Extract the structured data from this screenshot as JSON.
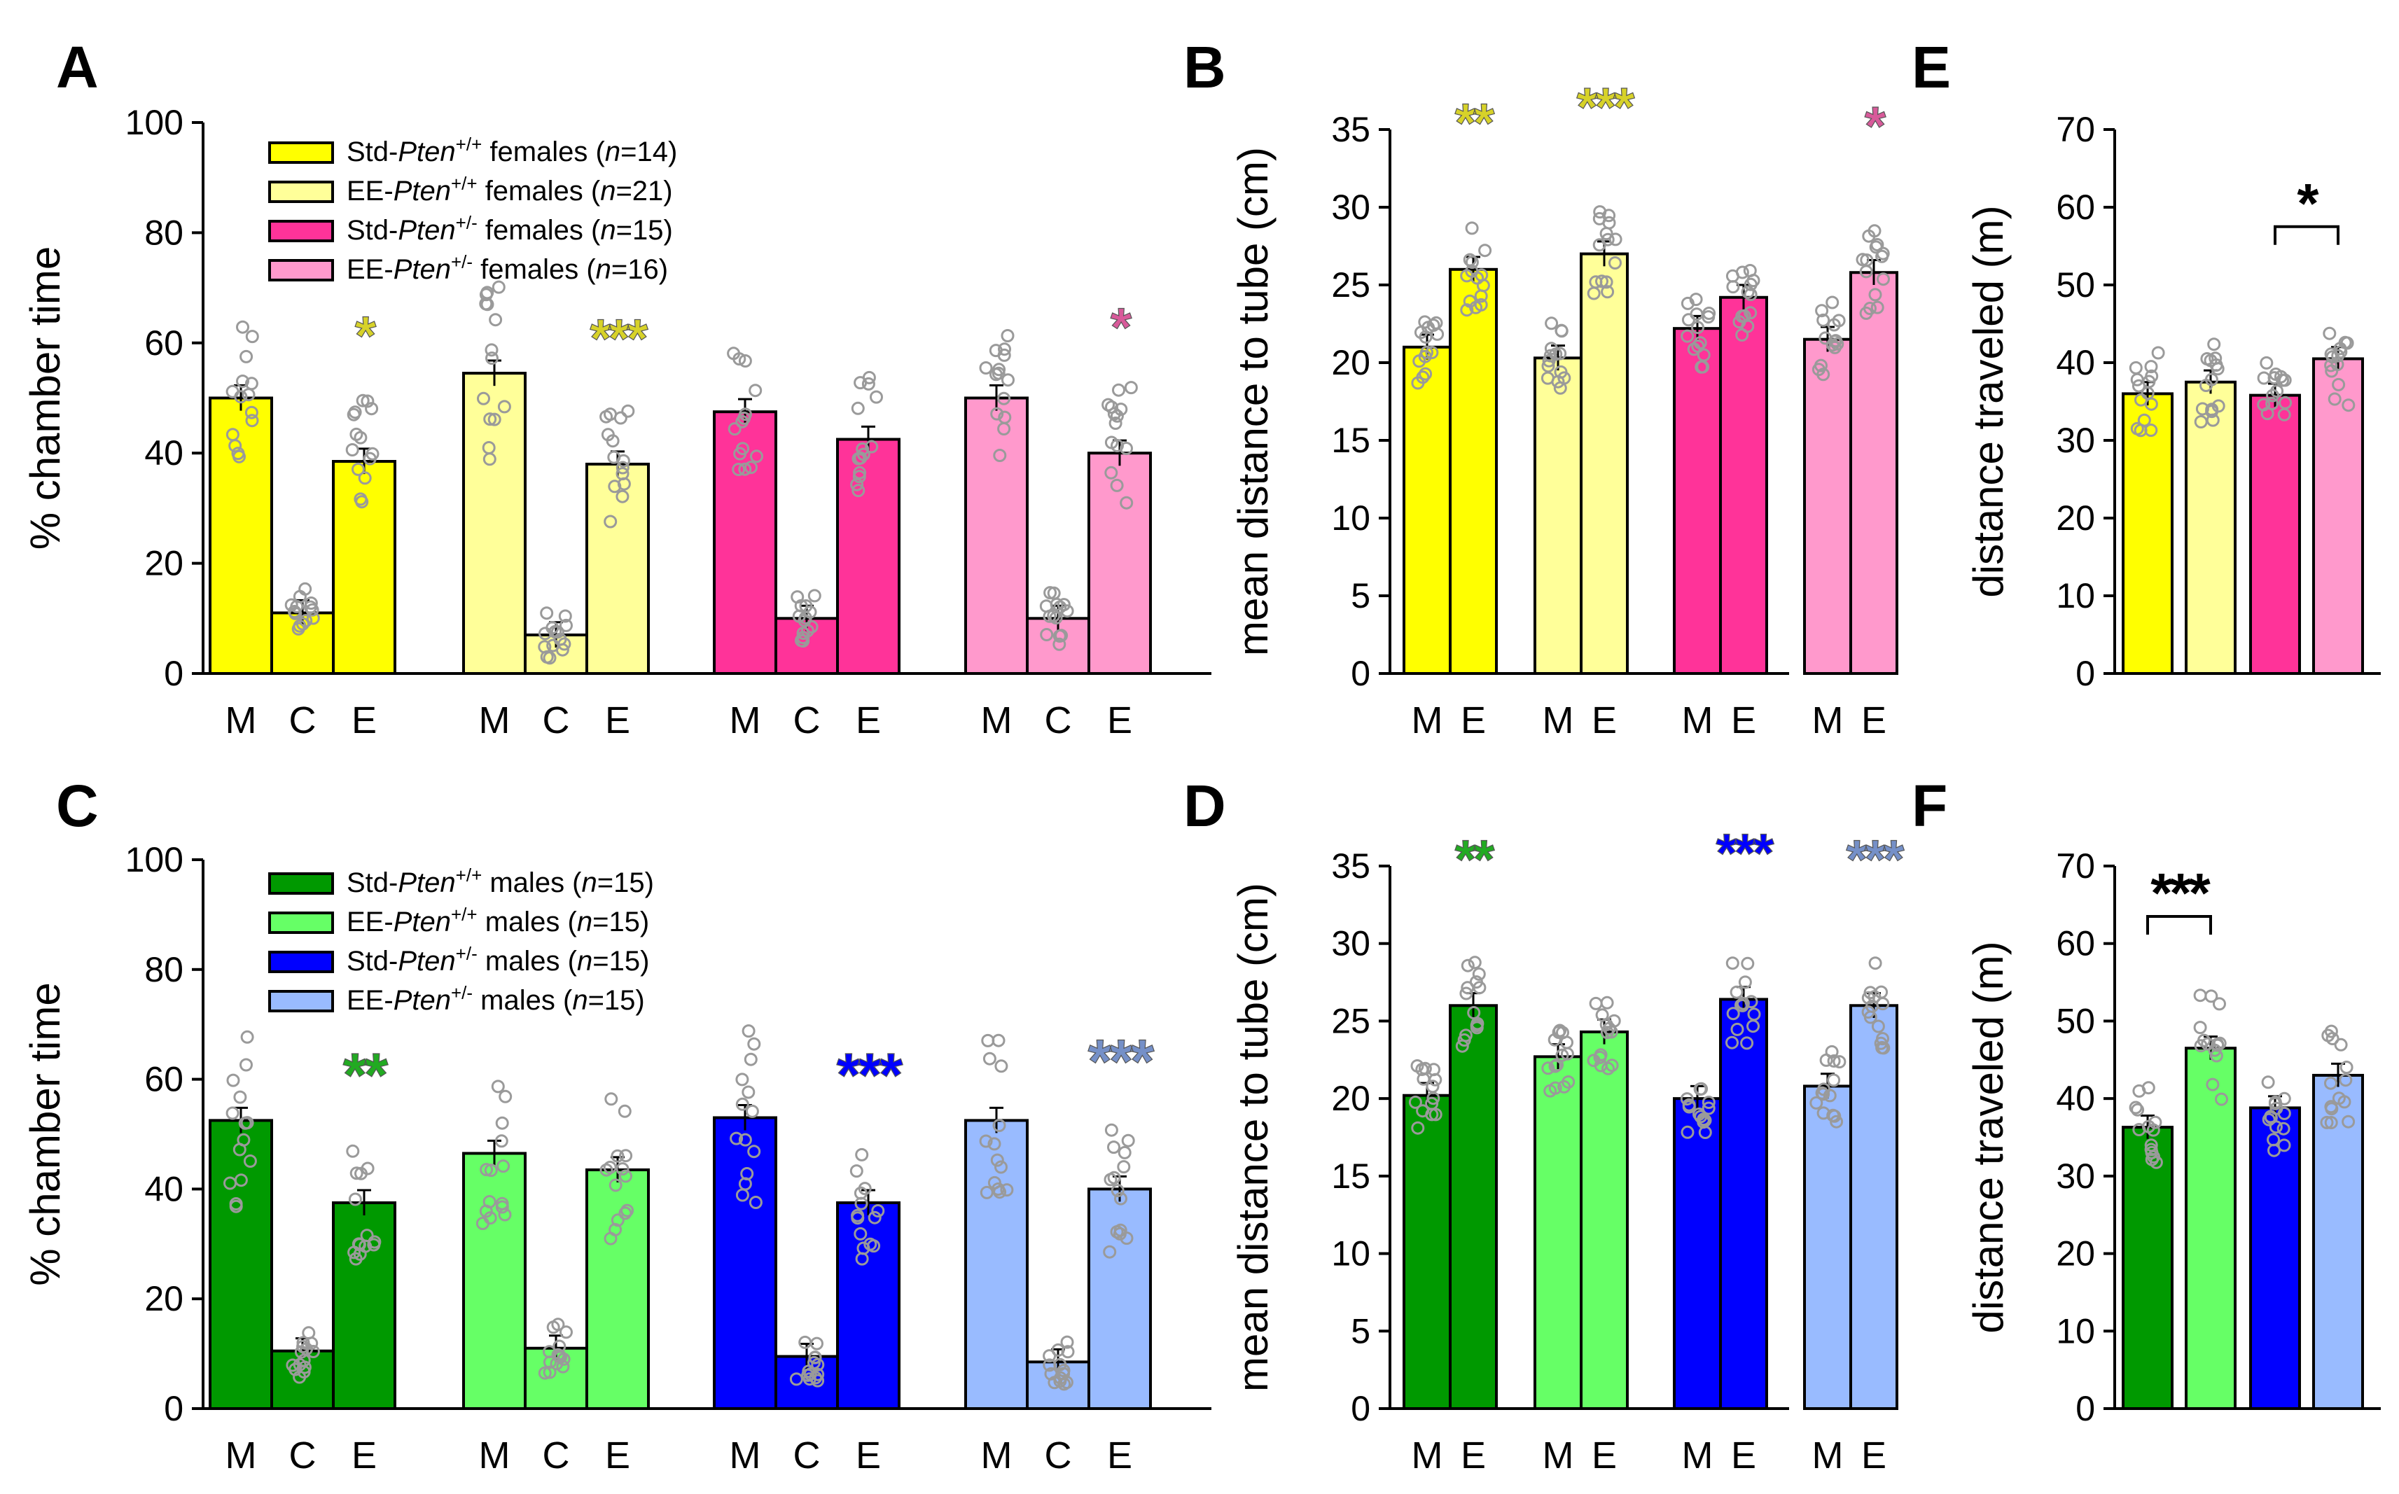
{
  "colors": {
    "std_wt_f": "#ffff00",
    "ee_wt_f": "#ffff99",
    "std_het_f": "#ff3399",
    "ee_het_f": "#ff99cc",
    "std_wt_m": "#009900",
    "ee_wt_m": "#66ff66",
    "std_het_m": "#0000ff",
    "ee_het_m": "#99bbff",
    "star_f_wt": "#d7d229",
    "star_f_het": "#d85a9a",
    "star_m_wt": "#22aa22",
    "star_m_het": "#0000ff",
    "star_m_eehet": "#7590c8",
    "dots": "#9a9a9a"
  },
  "chart_data": [
    {
      "panel": "A",
      "type": "bar",
      "ylabel": "% chamber time",
      "ylim": [
        0,
        100
      ],
      "yticks": [
        "0",
        "20",
        "40",
        "60",
        "80",
        "100"
      ],
      "legend": [
        {
          "prefix": "Std-",
          "gene": "Pten",
          "sup": "+/+",
          "suffix": " females (",
          "n": "n",
          "count": "=14)"
        },
        {
          "prefix": "EE-",
          "gene": "Pten",
          "sup": "+/+",
          "suffix": " females (",
          "n": "n",
          "count": "=21)"
        },
        {
          "prefix": "Std-",
          "gene": "Pten",
          "sup": "+/-",
          "suffix": " females (",
          "n": "n",
          "count": "=15)"
        },
        {
          "prefix": "EE-",
          "gene": "Pten",
          "sup": "+/-",
          "suffix": " females (",
          "n": "n",
          "count": "=16)"
        }
      ],
      "groups": [
        {
          "bars": [
            {
              "label": "M",
              "value": 50
            },
            {
              "label": "C",
              "value": 11
            },
            {
              "label": "E",
              "value": 38.5,
              "sig": "*"
            }
          ]
        },
        {
          "bars": [
            {
              "label": "M",
              "value": 54.5
            },
            {
              "label": "C",
              "value": 7
            },
            {
              "label": "E",
              "value": 38,
              "sig": "***"
            }
          ]
        },
        {
          "bars": [
            {
              "label": "M",
              "value": 47.5
            },
            {
              "label": "C",
              "value": 10
            },
            {
              "label": "E",
              "value": 42.5
            }
          ]
        },
        {
          "bars": [
            {
              "label": "M",
              "value": 50
            },
            {
              "label": "C",
              "value": 10
            },
            {
              "label": "E",
              "value": 40,
              "sig": "*"
            }
          ]
        }
      ]
    },
    {
      "panel": "B",
      "type": "bar",
      "ylabel": "mean distance to tube (cm)",
      "ylim": [
        0,
        35
      ],
      "yticks": [
        "0",
        "5",
        "10",
        "15",
        "20",
        "25",
        "30",
        "35"
      ],
      "groups": [
        {
          "bars": [
            {
              "label": "M",
              "value": 21
            },
            {
              "label": "E",
              "value": 26,
              "sig": "**"
            }
          ]
        },
        {
          "bars": [
            {
              "label": "M",
              "value": 20.3
            },
            {
              "label": "E",
              "value": 27,
              "sig": "***"
            }
          ]
        },
        {
          "bars": [
            {
              "label": "M",
              "value": 22.2
            },
            {
              "label": "E",
              "value": 24.2
            }
          ]
        },
        {
          "bars": [
            {
              "label": "M",
              "value": 21.5
            },
            {
              "label": "E",
              "value": 25.8,
              "sig": "*"
            }
          ]
        }
      ]
    },
    {
      "panel": "E",
      "type": "bar",
      "ylabel": "distance traveled (m)",
      "ylim": [
        0,
        70
      ],
      "yticks": [
        "0",
        "10",
        "20",
        "30",
        "40",
        "50",
        "60",
        "70"
      ],
      "bars": [
        36,
        37.5,
        35.8,
        40.5
      ],
      "bracket": {
        "from": 2,
        "to": 3,
        "label": "*"
      }
    },
    {
      "panel": "C",
      "type": "bar",
      "ylabel": "% chamber time",
      "ylim": [
        0,
        100
      ],
      "yticks": [
        "0",
        "20",
        "40",
        "60",
        "80",
        "100"
      ],
      "legend": [
        {
          "prefix": "Std-",
          "gene": "Pten",
          "sup": "+/+",
          "suffix": " males (",
          "n": "n",
          "count": "=15)"
        },
        {
          "prefix": "EE-",
          "gene": "Pten",
          "sup": "+/+",
          "suffix": " males (",
          "n": "n",
          "count": "=15)"
        },
        {
          "prefix": "Std-",
          "gene": "Pten",
          "sup": "+/-",
          "suffix": " males (",
          "n": "n",
          "count": "=15)"
        },
        {
          "prefix": "EE-",
          "gene": "Pten",
          "sup": "+/-",
          "suffix": " males (",
          "n": "n",
          "count": "=15)"
        }
      ],
      "groups": [
        {
          "bars": [
            {
              "label": "M",
              "value": 52.5
            },
            {
              "label": "C",
              "value": 10.5
            },
            {
              "label": "E",
              "value": 37.5,
              "sig": "**"
            }
          ]
        },
        {
          "bars": [
            {
              "label": "M",
              "value": 46.5
            },
            {
              "label": "C",
              "value": 11
            },
            {
              "label": "E",
              "value": 43.5
            }
          ]
        },
        {
          "bars": [
            {
              "label": "M",
              "value": 53
            },
            {
              "label": "C",
              "value": 9.5
            },
            {
              "label": "E",
              "value": 37.5,
              "sig": "***"
            }
          ]
        },
        {
          "bars": [
            {
              "label": "M",
              "value": 52.5
            },
            {
              "label": "C",
              "value": 8.5
            },
            {
              "label": "E",
              "value": 40,
              "sig": "***"
            }
          ]
        }
      ]
    },
    {
      "panel": "D",
      "type": "bar",
      "ylabel": "mean distance to tube (cm)",
      "ylim": [
        0,
        35
      ],
      "yticks": [
        "0",
        "5",
        "10",
        "15",
        "20",
        "25",
        "30",
        "35"
      ],
      "groups": [
        {
          "bars": [
            {
              "label": "M",
              "value": 20.2
            },
            {
              "label": "E",
              "value": 26,
              "sig": "**"
            }
          ]
        },
        {
          "bars": [
            {
              "label": "M",
              "value": 22.7
            },
            {
              "label": "E",
              "value": 24.3
            }
          ]
        },
        {
          "bars": [
            {
              "label": "M",
              "value": 20
            },
            {
              "label": "E",
              "value": 26.4,
              "sig": "***"
            }
          ]
        },
        {
          "bars": [
            {
              "label": "M",
              "value": 20.8
            },
            {
              "label": "E",
              "value": 26,
              "sig": "***"
            }
          ]
        }
      ]
    },
    {
      "panel": "F",
      "type": "bar",
      "ylabel": "distance traveled (m)",
      "ylim": [
        0,
        70
      ],
      "yticks": [
        "0",
        "10",
        "20",
        "30",
        "40",
        "50",
        "60",
        "70"
      ],
      "bars": [
        36.3,
        46.5,
        38.8,
        43
      ],
      "bracket": {
        "from": 0,
        "to": 1,
        "label": "***"
      }
    }
  ]
}
